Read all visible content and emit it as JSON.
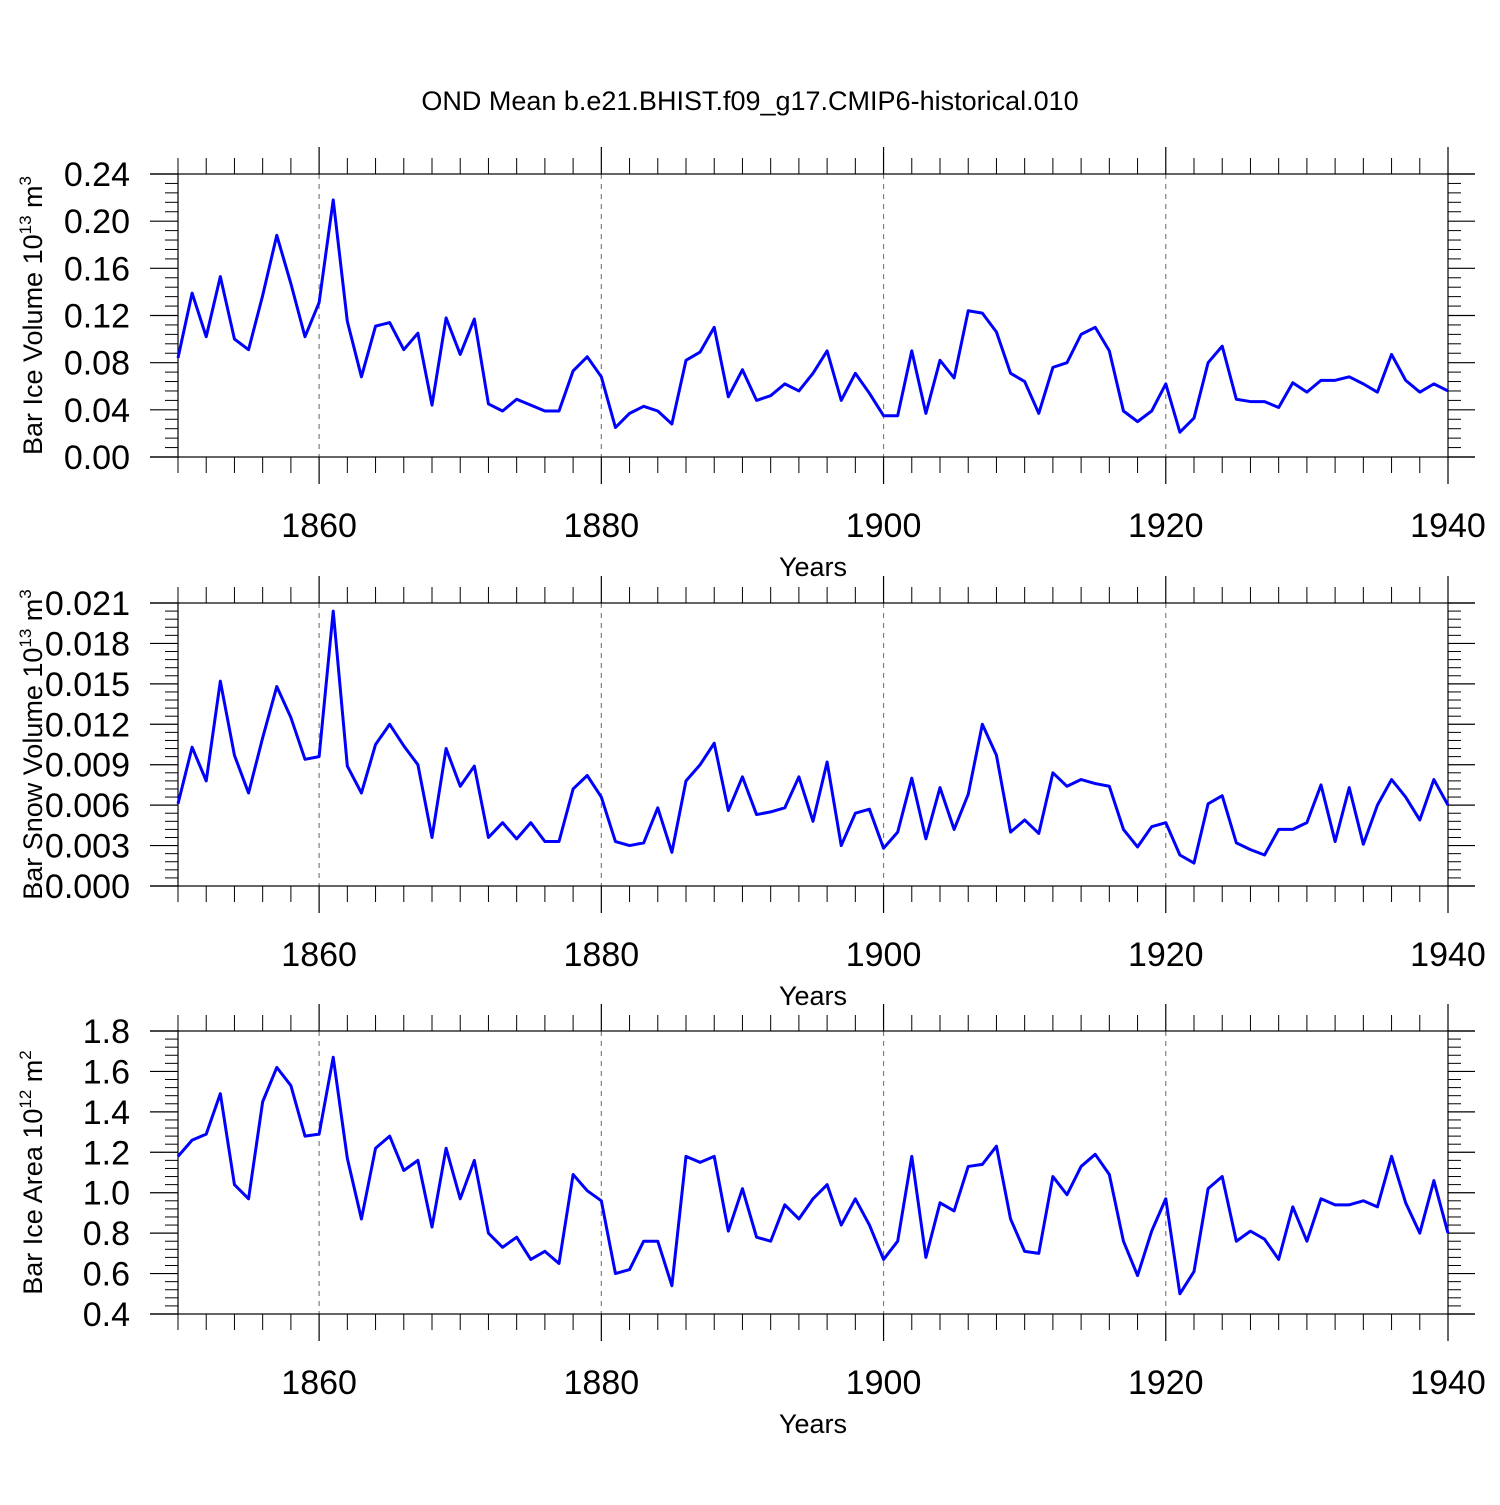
{
  "title": "OND Mean b.e21.BHIST.f09_g17.CMIP6-historical.010",
  "colors": {
    "line": "#0000ff",
    "axis": "#000000",
    "grid": "#808080"
  },
  "chart_data": [
    {
      "type": "line",
      "ylabel": "Bar Ice Volume 10",
      "ylabel_exp": "13",
      "ylabel_unit": " m",
      "ylabel_unit_exp": "3",
      "xlabel": "Years",
      "xlim": [
        1850,
        1940
      ],
      "ylim": [
        0,
        0.24
      ],
      "xticks": [
        1860,
        1880,
        1900,
        1920,
        1940
      ],
      "yticks": [
        "0.00",
        "0.04",
        "0.08",
        "0.12",
        "0.16",
        "0.20",
        "0.24"
      ],
      "series": [
        {
          "name": "Bar Ice Volume",
          "x_start": 1850,
          "values": [
            0.084,
            0.139,
            0.102,
            0.153,
            0.1,
            0.091,
            0.137,
            0.188,
            0.147,
            0.102,
            0.131,
            0.218,
            0.115,
            0.068,
            0.111,
            0.114,
            0.091,
            0.105,
            0.044,
            0.118,
            0.087,
            0.117,
            0.045,
            0.039,
            0.049,
            0.044,
            0.039,
            0.039,
            0.073,
            0.085,
            0.068,
            0.025,
            0.037,
            0.043,
            0.039,
            0.028,
            0.082,
            0.089,
            0.11,
            0.051,
            0.074,
            0.048,
            0.052,
            0.062,
            0.056,
            0.071,
            0.09,
            0.048,
            0.071,
            0.054,
            0.035,
            0.035,
            0.09,
            0.037,
            0.082,
            0.067,
            0.124,
            0.122,
            0.106,
            0.071,
            0.064,
            0.037,
            0.076,
            0.08,
            0.104,
            0.11,
            0.09,
            0.039,
            0.03,
            0.039,
            0.062,
            0.021,
            0.033,
            0.08,
            0.094,
            0.049,
            0.047,
            0.047,
            0.042,
            0.063,
            0.055,
            0.065,
            0.065,
            0.068,
            0.062,
            0.055,
            0.087,
            0.065,
            0.055,
            0.062,
            0.056
          ]
        }
      ]
    },
    {
      "type": "line",
      "ylabel": "Bar Snow Volume 10",
      "ylabel_exp": "13",
      "ylabel_unit": " m",
      "ylabel_unit_exp": "3",
      "xlabel": "Years",
      "xlim": [
        1850,
        1940
      ],
      "ylim": [
        0,
        0.021
      ],
      "xticks": [
        1860,
        1880,
        1900,
        1920,
        1940
      ],
      "yticks": [
        "0.000",
        "0.003",
        "0.006",
        "0.009",
        "0.012",
        "0.015",
        "0.018",
        "0.021"
      ],
      "series": [
        {
          "name": "Bar Snow Volume",
          "x_start": 1850,
          "values": [
            0.0061,
            0.0103,
            0.0078,
            0.0152,
            0.0097,
            0.0069,
            0.011,
            0.0148,
            0.0125,
            0.0094,
            0.0096,
            0.0204,
            0.0089,
            0.0069,
            0.0105,
            0.012,
            0.0104,
            0.009,
            0.0036,
            0.0102,
            0.0074,
            0.0089,
            0.0036,
            0.0047,
            0.0035,
            0.0047,
            0.0033,
            0.0033,
            0.0072,
            0.0082,
            0.0066,
            0.0033,
            0.003,
            0.0032,
            0.0058,
            0.0025,
            0.0078,
            0.009,
            0.0106,
            0.0056,
            0.0081,
            0.0053,
            0.0055,
            0.0058,
            0.0081,
            0.0048,
            0.0092,
            0.003,
            0.0054,
            0.0057,
            0.0028,
            0.004,
            0.008,
            0.0035,
            0.0073,
            0.0042,
            0.0068,
            0.012,
            0.0097,
            0.004,
            0.0049,
            0.0039,
            0.0084,
            0.0074,
            0.0079,
            0.0076,
            0.0074,
            0.0042,
            0.0029,
            0.0044,
            0.0047,
            0.0023,
            0.0017,
            0.0061,
            0.0067,
            0.0032,
            0.0027,
            0.0023,
            0.0042,
            0.0042,
            0.0047,
            0.0075,
            0.0033,
            0.0073,
            0.0031,
            0.006,
            0.0079,
            0.0066,
            0.0049,
            0.0079,
            0.006
          ]
        }
      ]
    },
    {
      "type": "line",
      "ylabel": "Bar Ice Area 10",
      "ylabel_exp": "12",
      "ylabel_unit": " m",
      "ylabel_unit_exp": "2",
      "xlabel": "Years",
      "xlim": [
        1850,
        1940
      ],
      "ylim": [
        0.4,
        1.8
      ],
      "xticks": [
        1860,
        1880,
        1900,
        1920,
        1940
      ],
      "yticks": [
        "0.4",
        "0.6",
        "0.8",
        "1.0",
        "1.2",
        "1.4",
        "1.6",
        "1.8"
      ],
      "series": [
        {
          "name": "Bar Ice Area",
          "x_start": 1850,
          "values": [
            1.18,
            1.26,
            1.29,
            1.49,
            1.04,
            0.97,
            1.45,
            1.62,
            1.53,
            1.28,
            1.29,
            1.67,
            1.17,
            0.87,
            1.22,
            1.28,
            1.11,
            1.16,
            0.83,
            1.22,
            0.97,
            1.16,
            0.8,
            0.73,
            0.78,
            0.67,
            0.71,
            0.65,
            1.09,
            1.01,
            0.96,
            0.6,
            0.62,
            0.76,
            0.76,
            0.54,
            1.18,
            1.15,
            1.18,
            0.81,
            1.02,
            0.78,
            0.76,
            0.94,
            0.87,
            0.97,
            1.04,
            0.84,
            0.97,
            0.84,
            0.67,
            0.76,
            1.18,
            0.68,
            0.95,
            0.91,
            1.13,
            1.14,
            1.23,
            0.87,
            0.71,
            0.7,
            1.08,
            0.99,
            1.13,
            1.19,
            1.09,
            0.76,
            0.59,
            0.81,
            0.97,
            0.5,
            0.61,
            1.02,
            1.08,
            0.76,
            0.81,
            0.77,
            0.67,
            0.93,
            0.76,
            0.97,
            0.94,
            0.94,
            0.96,
            0.93,
            1.18,
            0.95,
            0.8,
            1.06,
            0.8
          ]
        }
      ]
    }
  ]
}
